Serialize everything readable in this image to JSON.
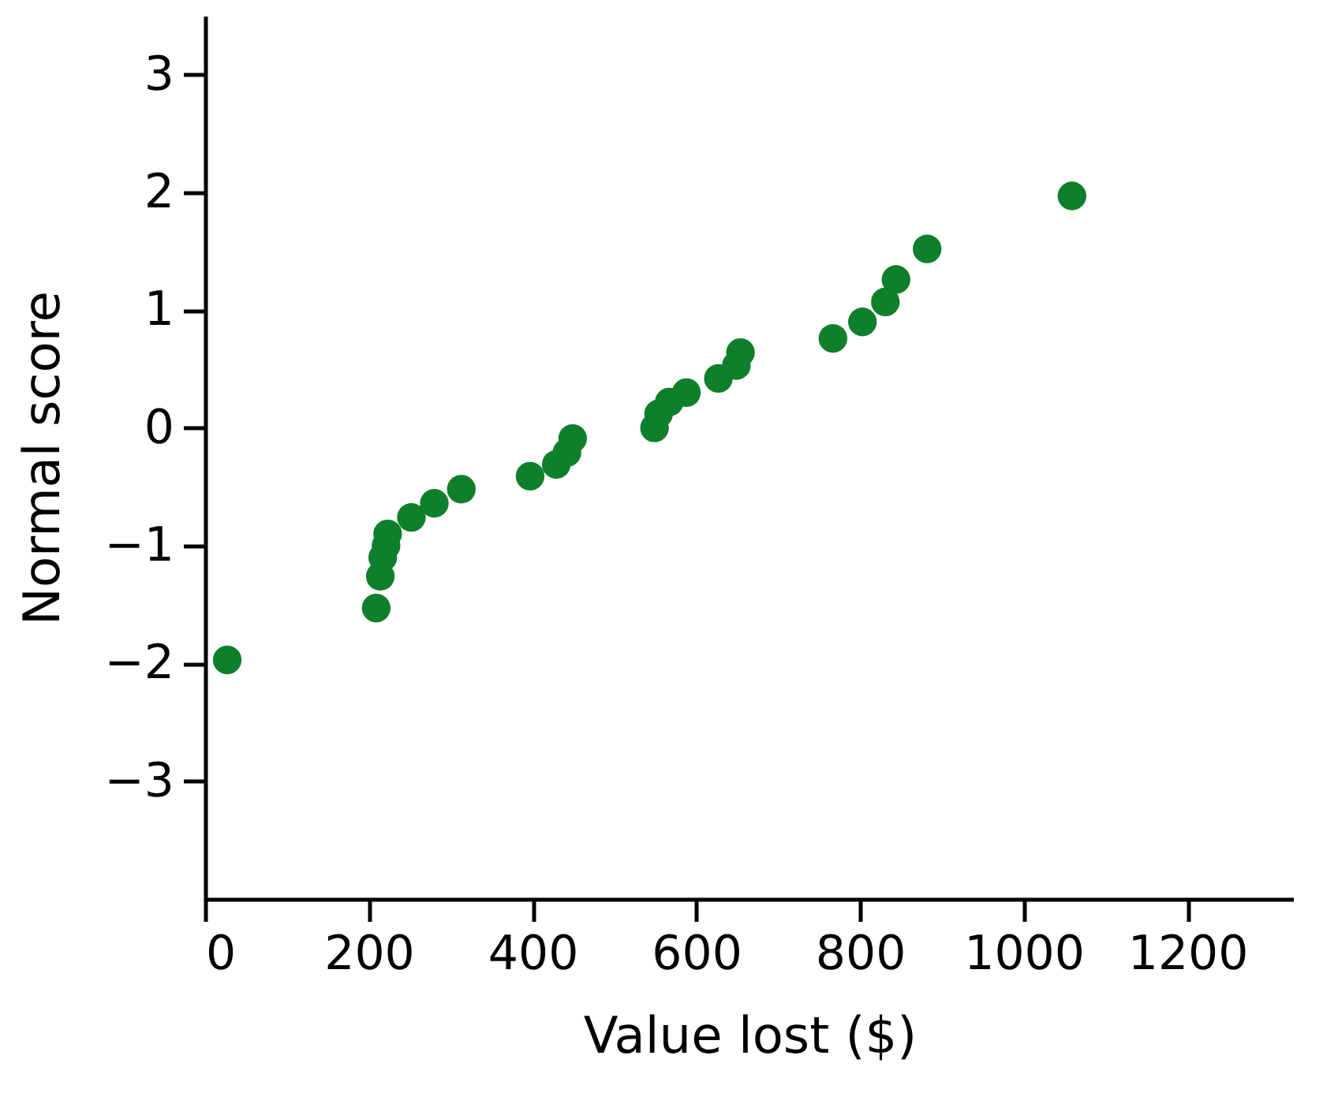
{
  "chart_data": {
    "type": "scatter",
    "xlabel": "Value lost ($)",
    "ylabel": "Normal score",
    "x": [
      27,
      209,
      214,
      217,
      221,
      223,
      252,
      280,
      313,
      397,
      429,
      442,
      449,
      549,
      554,
      567,
      588,
      627,
      649,
      654,
      767,
      803,
      831,
      844,
      882,
      1059
    ],
    "series": [
      {
        "color": "#0f7f2b",
        "values": [
          -1.97,
          -1.53,
          -1.26,
          -1.1,
          -1.0,
          -0.9,
          -0.76,
          -0.64,
          -0.52,
          -0.41,
          -0.31,
          -0.21,
          -0.09,
          0.0,
          0.12,
          0.22,
          0.3,
          0.42,
          0.53,
          0.64,
          0.76,
          0.9,
          1.07,
          1.26,
          1.52,
          1.97
        ]
      }
    ],
    "xlim": [
      0,
      1330
    ],
    "ylim": [
      -4,
      3.5
    ],
    "xticks": [
      0,
      200,
      400,
      600,
      800,
      1000,
      1200
    ],
    "yticks": [
      -3,
      -2,
      -1,
      0,
      1,
      2,
      3
    ],
    "grid": false,
    "legend": false,
    "marker": "circle"
  }
}
